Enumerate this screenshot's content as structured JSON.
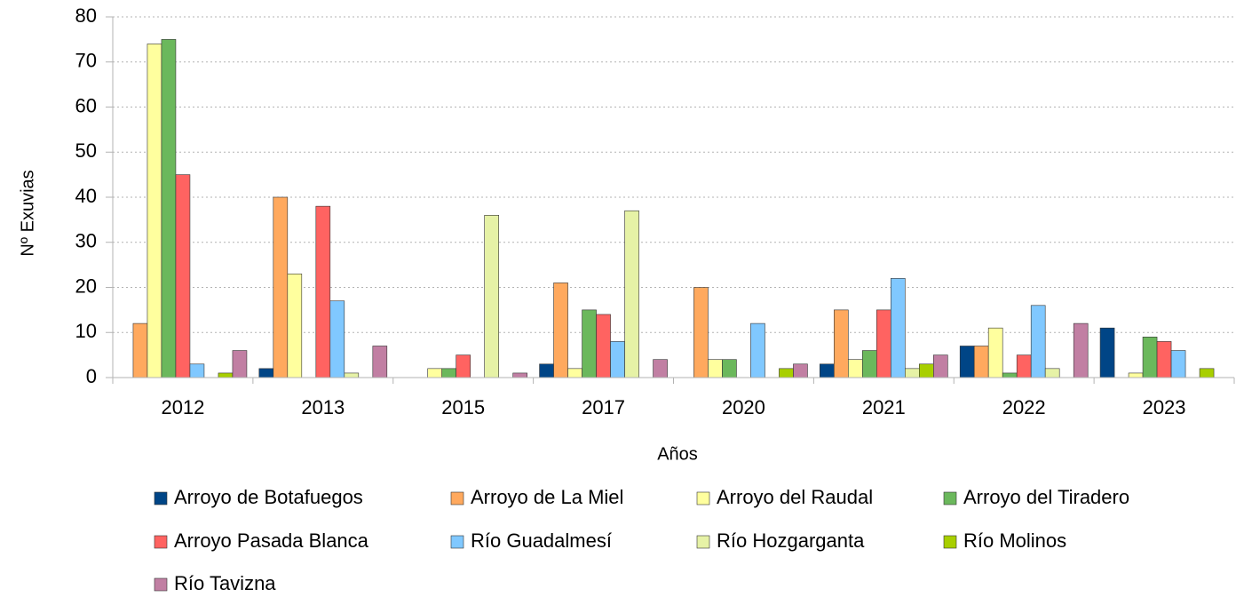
{
  "chart_data": {
    "type": "bar",
    "x_label": "Años",
    "y_label": "Nº Exuvias",
    "categories": [
      "2012",
      "2013",
      "2015",
      "2017",
      "2020",
      "2021",
      "2022",
      "2023"
    ],
    "series": [
      {
        "name": "Arroyo de Botafuegos",
        "color": "#004586",
        "values": [
          0,
          2,
          0,
          3,
          0,
          3,
          7,
          11
        ]
      },
      {
        "name": "Arroyo de La Miel",
        "color": "#ffa95e",
        "values": [
          12,
          40,
          0,
          21,
          20,
          15,
          7,
          0
        ]
      },
      {
        "name": "Arroyo del Raudal",
        "color": "#ffff9e",
        "values": [
          74,
          23,
          2,
          2,
          4,
          4,
          11,
          1
        ]
      },
      {
        "name": "Arroyo del Tiradero",
        "color": "#6bb85c",
        "values": [
          75,
          0,
          2,
          15,
          4,
          6,
          1,
          9
        ]
      },
      {
        "name": "Arroyo Pasada Blanca",
        "color": "#ff6361",
        "values": [
          45,
          38,
          5,
          14,
          0,
          15,
          5,
          8
        ]
      },
      {
        "name": "Río Guadalmesí",
        "color": "#80c8ff",
        "values": [
          3,
          17,
          0,
          8,
          12,
          22,
          16,
          6
        ]
      },
      {
        "name": "Río Hozgarganta",
        "color": "#e6f2a6",
        "values": [
          0,
          1,
          36,
          37,
          0,
          2,
          2,
          0
        ]
      },
      {
        "name": "Río Molinos",
        "color": "#a8cf00",
        "values": [
          1,
          0,
          0,
          0,
          2,
          3,
          0,
          2
        ]
      },
      {
        "name": "Río Tavizna",
        "color": "#c17fa3",
        "values": [
          6,
          7,
          1,
          4,
          3,
          5,
          12,
          0
        ]
      }
    ],
    "ylim": [
      0,
      80
    ],
    "yticks": [
      0,
      10,
      20,
      30,
      40,
      50,
      60,
      70,
      80
    ],
    "grid": true,
    "legend_position": "bottom"
  }
}
